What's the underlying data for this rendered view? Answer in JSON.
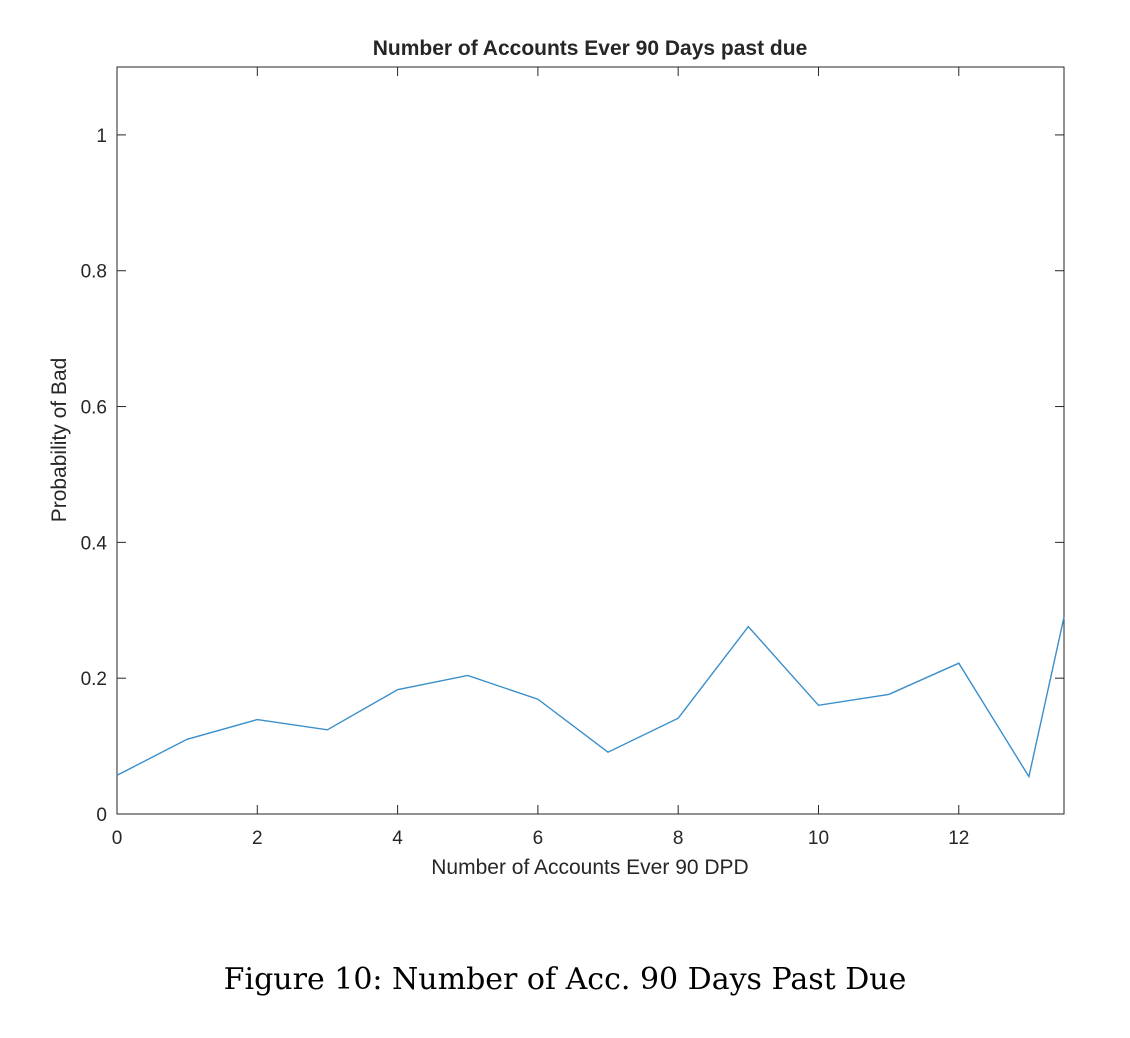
{
  "chart_data": {
    "type": "line",
    "title": "Number of Accounts Ever 90 Days past due",
    "xlabel": "Number of Accounts Ever 90 DPD",
    "ylabel": "Probability of Bad",
    "xlim": [
      0,
      13.5
    ],
    "ylim": [
      0,
      1.1
    ],
    "xticks": [
      0,
      2,
      4,
      6,
      8,
      10,
      12
    ],
    "xtick_labels": [
      "0",
      "2",
      "4",
      "6",
      "8",
      "10",
      "12"
    ],
    "yticks": [
      0,
      0.2,
      0.4,
      0.6,
      0.8,
      1
    ],
    "ytick_labels": [
      "0",
      "0.2",
      "0.4",
      "0.6",
      "0.8",
      "1"
    ],
    "grid": false,
    "legend": "none",
    "series": [
      {
        "color": "#3a8fcc",
        "x": [
          0,
          1,
          2,
          3,
          4,
          5,
          6,
          7,
          8,
          9,
          10,
          11,
          12,
          13,
          13.5
        ],
        "y": [
          0.057,
          0.11,
          0.139,
          0.124,
          0.183,
          0.204,
          0.169,
          0.091,
          0.141,
          0.276,
          0.16,
          0.176,
          0.222,
          0.055,
          0.29
        ]
      }
    ]
  },
  "caption": "Figure 10: Number of Acc. 90 Days Past Due"
}
